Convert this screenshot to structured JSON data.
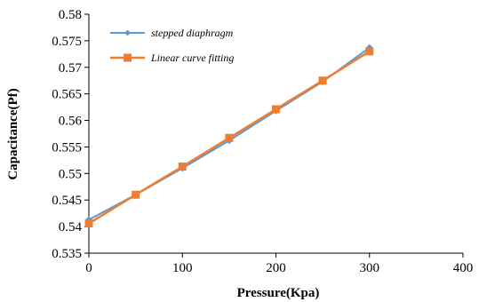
{
  "chart_data": {
    "type": "line",
    "title": "",
    "xlabel": "Pressure(Kpa)",
    "ylabel": "Capacitance(Pf)",
    "xlim": [
      0,
      400
    ],
    "ylim": [
      0.535,
      0.58
    ],
    "x_ticks": [
      0,
      100,
      200,
      300,
      400
    ],
    "x_tick_labels": [
      "0",
      "100",
      "200",
      "300",
      "400"
    ],
    "y_ticks": [
      0.535,
      0.54,
      0.545,
      0.55,
      0.555,
      0.56,
      0.565,
      0.57,
      0.575,
      0.58
    ],
    "y_tick_labels": [
      "0.535",
      "0.54",
      "0.545",
      "0.55",
      "0.555",
      "0.56",
      "0.565",
      "0.57",
      "0.575",
      "0.58"
    ],
    "grid": false,
    "legend_position": "top-left",
    "series": [
      {
        "name": "stepped diaphragm",
        "color": "#5b9bd5",
        "marker": "diamond",
        "x": [
          0,
          50,
          100,
          150,
          200,
          250,
          300
        ],
        "y": [
          0.5413,
          0.546,
          0.551,
          0.5562,
          0.5618,
          0.5673,
          0.5737
        ]
      },
      {
        "name": "Linear curve fitting",
        "color": "#ed7d31",
        "marker": "square",
        "x": [
          0,
          50,
          100,
          150,
          200,
          250,
          300
        ],
        "y": [
          0.5406,
          0.546,
          0.5513,
          0.5567,
          0.5621,
          0.5675,
          0.573
        ]
      }
    ]
  }
}
